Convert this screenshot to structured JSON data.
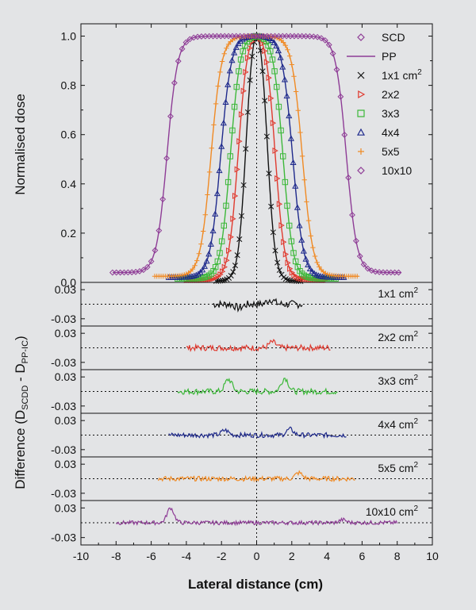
{
  "chart_data": {
    "type": "line",
    "ylabel_top": "Normalised dose",
    "xlabel": "Lateral distance (cm)",
    "xlim": [
      -10,
      10
    ],
    "xticks": [
      "-10",
      "-8",
      "-6",
      "-4",
      "-2",
      "0",
      "2",
      "4",
      "6",
      "8",
      "10"
    ],
    "xtick_values": [
      -10,
      -8,
      -6,
      -4,
      -2,
      0,
      2,
      4,
      6,
      8,
      10
    ],
    "top_panel": {
      "ylim": [
        0,
        1.05
      ],
      "yticks": [
        "0.0",
        "0.2",
        "0.4",
        "0.6",
        "0.8",
        "1.0"
      ],
      "ytick_values": [
        0,
        0.2,
        0.4,
        0.6,
        0.8,
        1.0
      ],
      "legend": {
        "position": "top-right",
        "header": [
          {
            "marker": "diamond",
            "label": "SCD"
          },
          {
            "marker": "line",
            "label": "PP"
          }
        ],
        "fields": [
          {
            "marker": "x",
            "color": "#111111",
            "label": "1x1 cm",
            "sup": "2"
          },
          {
            "marker": "triangle-right",
            "color": "#e03a2f",
            "label": "2x2",
            "sup": ""
          },
          {
            "marker": "square",
            "color": "#3db83a",
            "label": "3x3",
            "sup": ""
          },
          {
            "marker": "triangle-up",
            "color": "#1f2a8c",
            "label": "4x4",
            "sup": ""
          },
          {
            "marker": "plus",
            "color": "#f08a24",
            "label": "5x5",
            "sup": ""
          },
          {
            "marker": "diamond",
            "color": "#8e3c96",
            "label": "10x10",
            "sup": ""
          }
        ]
      },
      "series": [
        {
          "name": "1x1",
          "color": "#111111",
          "marker": "x",
          "half_width_cm": 0.6,
          "penumbra_cm": 0.22,
          "tail": 0.005,
          "range": [
            -2.3,
            2.6
          ]
        },
        {
          "name": "2x2",
          "color": "#e03a2f",
          "marker": "triangle-right",
          "half_width_cm": 1.05,
          "penumbra_cm": 0.27,
          "tail": 0.01,
          "range": [
            -4.0,
            4.0
          ]
        },
        {
          "name": "3x3",
          "color": "#3db83a",
          "marker": "square",
          "half_width_cm": 1.5,
          "penumbra_cm": 0.28,
          "tail": 0.015,
          "range": [
            -4.5,
            4.5
          ]
        },
        {
          "name": "4x4",
          "color": "#1f2a8c",
          "marker": "triangle-up",
          "half_width_cm": 2.05,
          "penumbra_cm": 0.3,
          "tail": 0.02,
          "range": [
            -5.0,
            5.0
          ]
        },
        {
          "name": "5x5",
          "color": "#f08a24",
          "marker": "plus",
          "half_width_cm": 2.6,
          "penumbra_cm": 0.3,
          "tail": 0.025,
          "range": [
            -5.8,
            5.8
          ]
        },
        {
          "name": "10x10",
          "color": "#8e3c96",
          "marker": "diamond",
          "half_width_cm": 5.1,
          "penumbra_cm": 0.3,
          "tail": 0.04,
          "range": [
            -8.2,
            8.2
          ]
        }
      ]
    },
    "difference_panels": {
      "ylabel": "Difference (D",
      "ylabel_sub1": "SCDD",
      "ylabel_mid": " - D",
      "ylabel_sub2": "PP-IC",
      "ylabel_end": ")",
      "ylim": [
        -0.045,
        0.045
      ],
      "yticks": [
        "0.03",
        "-0.03"
      ],
      "ytick_values": [
        0.03,
        -0.03
      ],
      "panels": [
        {
          "label": "1x1 cm",
          "sup": "2",
          "color": "#111111",
          "range": [
            -2.5,
            2.6
          ],
          "noise": 0.008,
          "bumps": [
            [
              0.8,
              0.01
            ],
            [
              -1.0,
              -0.008
            ]
          ]
        },
        {
          "label": "2x2 cm",
          "sup": "2",
          "color": "#e03a2f",
          "range": [
            -4.0,
            4.2
          ],
          "noise": 0.006,
          "bumps": [
            [
              0.9,
              0.012
            ]
          ]
        },
        {
          "label": "3x3 cm",
          "sup": "2",
          "color": "#3db83a",
          "range": [
            -4.5,
            4.6
          ],
          "noise": 0.006,
          "bumps": [
            [
              -1.6,
              0.025
            ],
            [
              1.6,
              0.028
            ]
          ]
        },
        {
          "label": "4x4 cm",
          "sup": "2",
          "color": "#1f2a8c",
          "range": [
            -5.0,
            5.1
          ],
          "noise": 0.005,
          "bumps": [
            [
              -1.8,
              0.01
            ],
            [
              1.9,
              0.012
            ]
          ]
        },
        {
          "label": "5x5 cm",
          "sup": "2",
          "color": "#f08a24",
          "range": [
            -5.6,
            5.6
          ],
          "noise": 0.005,
          "bumps": [
            [
              2.4,
              0.012
            ]
          ]
        },
        {
          "label": "10x10 cm",
          "sup": "2",
          "color": "#8e3c96",
          "range": [
            -8.0,
            8.0
          ],
          "noise": 0.004,
          "bumps": [
            [
              -4.9,
              0.03
            ],
            [
              4.9,
              0.006
            ]
          ]
        }
      ]
    }
  }
}
